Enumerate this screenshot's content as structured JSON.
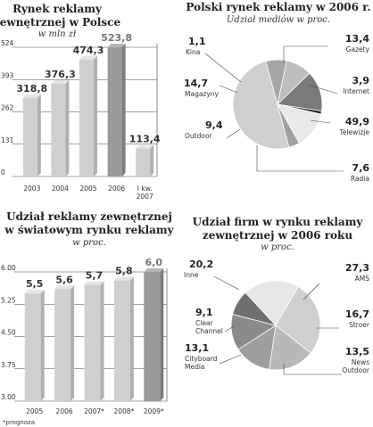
{
  "chart_data": [
    {
      "type": "bar",
      "title_lines": [
        "Rynek reklamy",
        "zewnętrznej w Polsce"
      ],
      "subtitle": "w mln zł",
      "categories": [
        [
          "2003"
        ],
        [
          "2004"
        ],
        [
          "2005"
        ],
        [
          "2006"
        ],
        [
          "I kw.",
          "2007"
        ]
      ],
      "values": [
        318.8,
        376.3,
        474.3,
        523.8,
        113.4
      ],
      "value_labels": [
        "318,8",
        "376,3",
        "474,3",
        "523,8",
        "113,4"
      ],
      "highlight_index": 3,
      "yticks": [
        0,
        131,
        262,
        393,
        524
      ],
      "ytick_labels": [
        "0",
        "131",
        "262",
        "393",
        "524"
      ],
      "ylim": [
        0,
        524
      ]
    },
    {
      "type": "pie",
      "title_lines": [
        "Polski rynek reklamy w 2006 r."
      ],
      "subtitle": "Udział mediów w proc.",
      "slices": [
        {
          "label": "Telewizje",
          "value": 49.9,
          "value_label": "49,9",
          "color": "#cfcfcf"
        },
        {
          "label": "Radia",
          "value": 7.6,
          "value_label": "7,6",
          "color": "#a6a6a6"
        },
        {
          "label": "Outdoor",
          "value": 9.4,
          "value_label": "9,4",
          "color": "#bdbdbd"
        },
        {
          "label": "Magazyny",
          "value": 14.7,
          "value_label": "14,7",
          "color": "#7a7a7a"
        },
        {
          "label": "Kina",
          "value": 1.1,
          "value_label": "1,1",
          "color": "#222222"
        },
        {
          "label": "Gazety",
          "value": 13.4,
          "value_label": "13,4",
          "color": "#e9e9e9"
        },
        {
          "label": "Internet",
          "value": 3.9,
          "value_label": "3,9",
          "color": "#a0a0a0"
        }
      ]
    },
    {
      "type": "bar",
      "title_lines": [
        "Udział reklamy zewnętrznej",
        "w światowym rynku reklamy"
      ],
      "subtitle": "w proc.",
      "categories": [
        [
          "2005"
        ],
        [
          "2006"
        ],
        [
          "2007*"
        ],
        [
          "2008*"
        ],
        [
          "2009*"
        ]
      ],
      "values": [
        5.5,
        5.6,
        5.7,
        5.8,
        6.0
      ],
      "value_labels": [
        "5,5",
        "5,6",
        "5,7",
        "5,8",
        "6,0"
      ],
      "highlight_index": 4,
      "yticks": [
        3.0,
        3.75,
        4.5,
        5.25,
        6.0
      ],
      "ytick_labels": [
        "3.00",
        "3.75",
        "4.50",
        "5.25",
        "6.00"
      ],
      "ylim": [
        3.0,
        6.0
      ],
      "footnote": "*prognoza"
    },
    {
      "type": "pie",
      "title_lines": [
        "Udział firm w rynku reklamy",
        "zewnętrznej w 2006 roku"
      ],
      "subtitle": "w proc.",
      "slices": [
        {
          "label": [
            "AMS"
          ],
          "value": 27.3,
          "value_label": "27,3",
          "color": "#cfcfcf"
        },
        {
          "label": [
            "Stroer"
          ],
          "value": 16.7,
          "value_label": "16,7",
          "color": "#b8b8b8"
        },
        {
          "label": [
            "News",
            "Outdoor"
          ],
          "value": 13.5,
          "value_label": "13,5",
          "color": "#9e9e9e"
        },
        {
          "label": [
            "Cityboard",
            "Media"
          ],
          "value": 13.1,
          "value_label": "13,1",
          "color": "#8a8a8a"
        },
        {
          "label": [
            "Clear",
            "Channel"
          ],
          "value": 9.1,
          "value_label": "9,1",
          "color": "#6f6f6f"
        },
        {
          "label": [
            "Inne"
          ],
          "value": 20.2,
          "value_label": "20,2",
          "color": "#e6e6e6"
        }
      ]
    }
  ]
}
